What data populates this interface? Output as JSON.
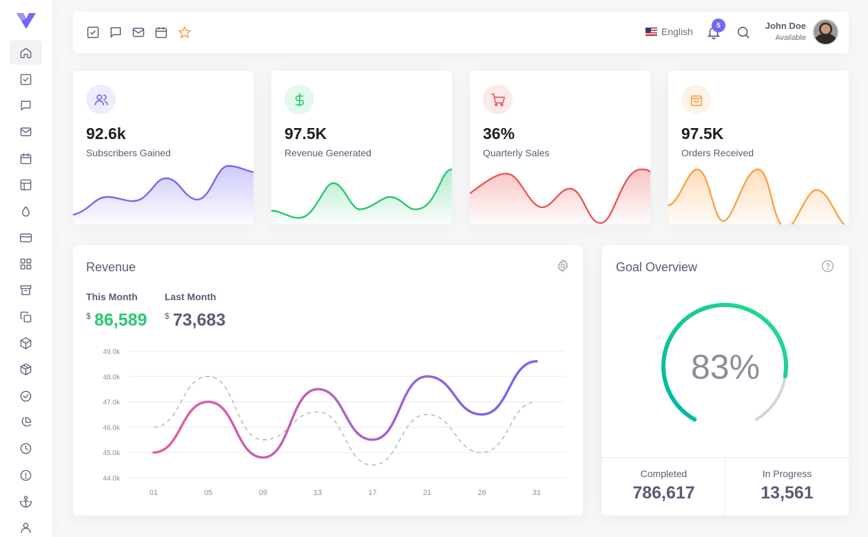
{
  "sidebar": {
    "items": [
      {
        "name": "home-icon"
      },
      {
        "name": "todo-icon"
      },
      {
        "name": "chat-icon"
      },
      {
        "name": "email-icon"
      },
      {
        "name": "calendar-icon"
      },
      {
        "name": "layout-icon"
      },
      {
        "name": "droplet-icon"
      },
      {
        "name": "credit-card-icon"
      },
      {
        "name": "grid-icon"
      },
      {
        "name": "archive-icon"
      },
      {
        "name": "copy-icon"
      },
      {
        "name": "box-icon"
      },
      {
        "name": "package-icon"
      },
      {
        "name": "check-circle-icon"
      },
      {
        "name": "pie-chart-icon"
      },
      {
        "name": "clock-icon"
      },
      {
        "name": "alert-circle-icon"
      },
      {
        "name": "anchor-icon"
      },
      {
        "name": "user-icon"
      }
    ],
    "active_index": 0
  },
  "navbar": {
    "language": "English",
    "notification_count": "5",
    "user_name": "John Doe",
    "user_status": "Available"
  },
  "stats": [
    {
      "value": "92.6k",
      "label": "Subscribers Gained",
      "icon": "users-icon",
      "color": "#7367f0",
      "bg": "#eeedfd"
    },
    {
      "value": "97.5K",
      "label": "Revenue Generated",
      "icon": "dollar-icon",
      "color": "#28c76f",
      "bg": "#e5f8ed"
    },
    {
      "value": "36%",
      "label": "Quarterly Sales",
      "icon": "shopping-cart-icon",
      "color": "#ea5455",
      "bg": "#fceaea"
    },
    {
      "value": "97.5K",
      "label": "Orders Received",
      "icon": "shopping-bag-icon",
      "color": "#ff9f43",
      "bg": "#fff3e8"
    }
  ],
  "revenue": {
    "title": "Revenue",
    "this_month_label": "This Month",
    "this_month_value": "86,589",
    "last_month_label": "Last Month",
    "last_month_value": "73,683",
    "currency": "$",
    "this_month_color": "#28c76f"
  },
  "goal": {
    "title": "Goal Overview",
    "percent": "83%",
    "completed_label": "Completed",
    "completed_value": "786,617",
    "in_progress_label": "In Progress",
    "in_progress_value": "13,561"
  },
  "chart_data": {
    "type": "line",
    "x": [
      "01",
      "05",
      "09",
      "13",
      "17",
      "21",
      "26",
      "31"
    ],
    "ylim": [
      44.0,
      49.0
    ],
    "yticks": [
      "49.0k",
      "48.0k",
      "47.0k",
      "46.0k",
      "45.0k",
      "44.0k"
    ],
    "series": [
      {
        "values": [
          45.0,
          47.0,
          44.8,
          47.5,
          45.5,
          48.0,
          46.5,
          48.6
        ]
      },
      {
        "values": [
          46.0,
          48.0,
          45.5,
          46.6,
          44.5,
          46.5,
          45.0,
          47.0
        ]
      }
    ]
  }
}
